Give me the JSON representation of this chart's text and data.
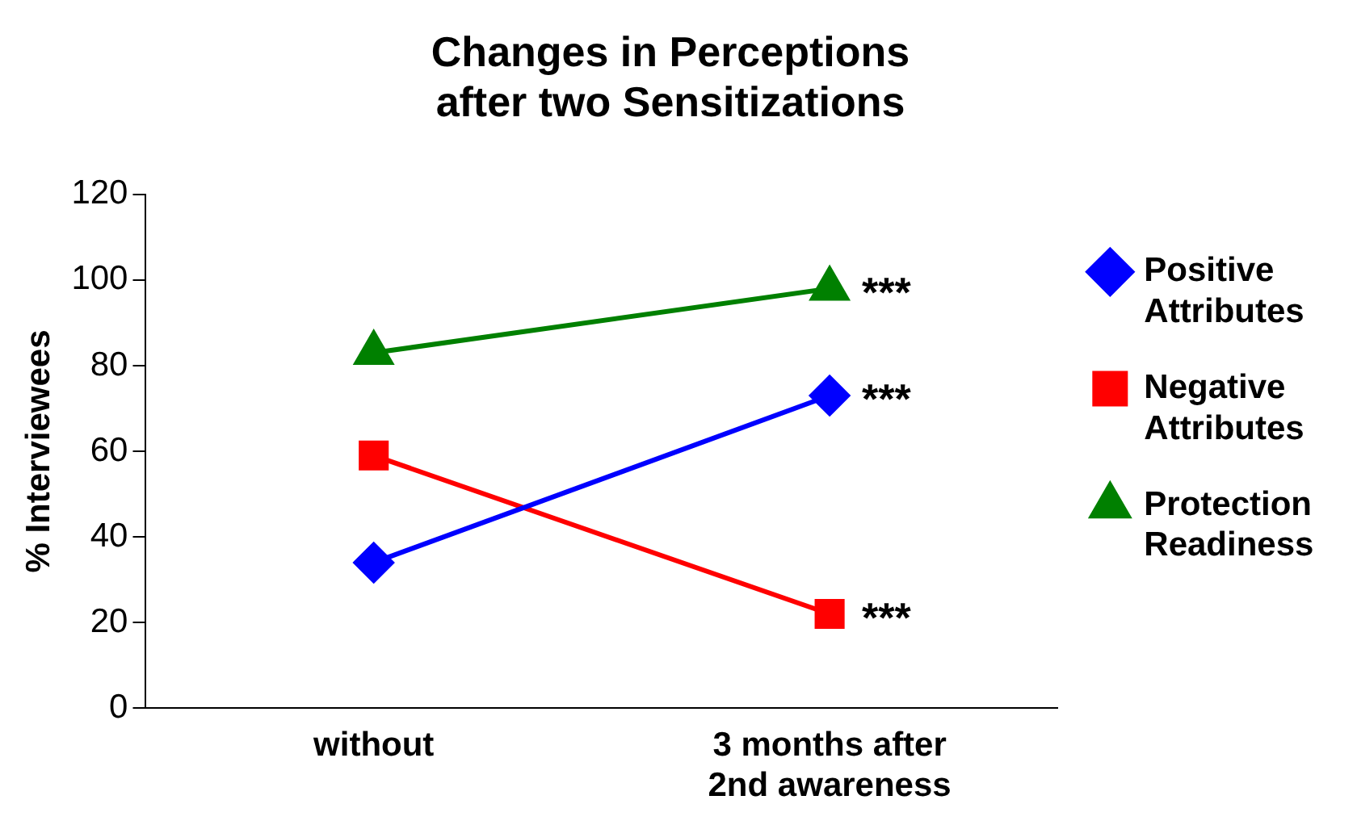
{
  "chart_data": {
    "type": "line",
    "title": "Changes in Perceptions\nafter two Sensitizations",
    "ylabel": "% Interviewees",
    "categories": [
      "without",
      "3 months after\n2nd awareness"
    ],
    "series": [
      {
        "name": "Positive\nAttributes",
        "color": "#0000ff",
        "marker": "diamond",
        "values": [
          34,
          73
        ]
      },
      {
        "name": "Negative\nAttributes",
        "color": "#ff0000",
        "marker": "square",
        "values": [
          59,
          22
        ]
      },
      {
        "name": "Protection\nReadiness",
        "color": "#008000",
        "marker": "triangle",
        "values": [
          83,
          98
        ]
      }
    ],
    "annotations": [
      {
        "text": "***",
        "x": "3 months after\n2nd awareness",
        "y": 98
      },
      {
        "text": "***",
        "x": "3 months after\n2nd awareness",
        "y": 73
      },
      {
        "text": "***",
        "x": "3 months after\n2nd awareness",
        "y": 22
      }
    ],
    "ylim": [
      0,
      120
    ],
    "yticks": [
      0,
      20,
      40,
      60,
      80,
      100,
      120
    ],
    "grid": false,
    "legend": "right",
    "line_style": "solid"
  }
}
